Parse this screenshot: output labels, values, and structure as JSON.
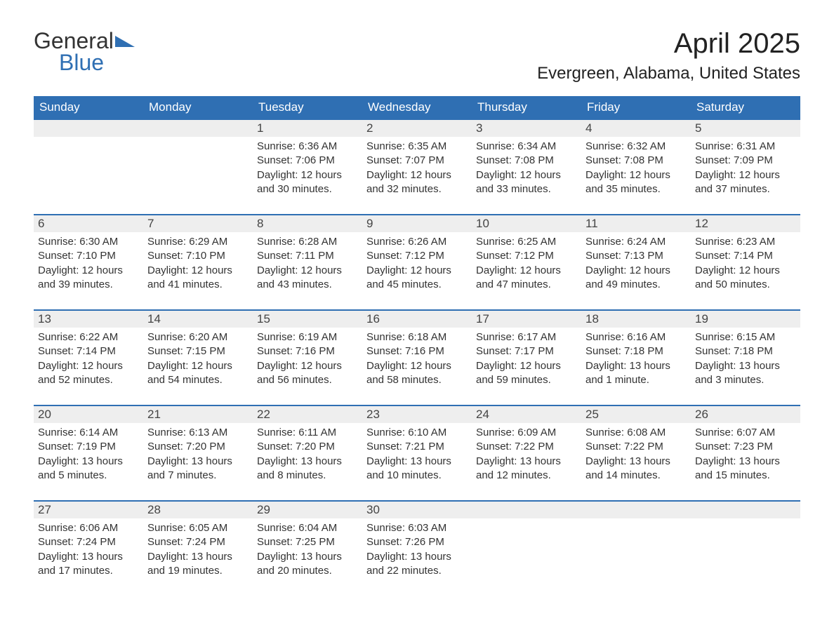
{
  "brand": {
    "general": "General",
    "blue": "Blue",
    "flag_color": "#2f6fb3"
  },
  "title": "April 2025",
  "location": "Evergreen, Alabama, United States",
  "colors": {
    "header_bg": "#2f6fb3",
    "header_text": "#ffffff",
    "daynum_bg": "#eeeeee",
    "body_text": "#333333",
    "row_border": "#2f6fb3",
    "page_bg": "#ffffff"
  },
  "fonts": {
    "title_size_pt": 30,
    "location_size_pt": 18,
    "header_size_pt": 13,
    "body_size_pt": 11
  },
  "weekdays": [
    "Sunday",
    "Monday",
    "Tuesday",
    "Wednesday",
    "Thursday",
    "Friday",
    "Saturday"
  ],
  "weeks": [
    [
      null,
      null,
      {
        "n": "1",
        "sr": "Sunrise: 6:36 AM",
        "ss": "Sunset: 7:06 PM",
        "dl": "Daylight: 12 hours and 30 minutes."
      },
      {
        "n": "2",
        "sr": "Sunrise: 6:35 AM",
        "ss": "Sunset: 7:07 PM",
        "dl": "Daylight: 12 hours and 32 minutes."
      },
      {
        "n": "3",
        "sr": "Sunrise: 6:34 AM",
        "ss": "Sunset: 7:08 PM",
        "dl": "Daylight: 12 hours and 33 minutes."
      },
      {
        "n": "4",
        "sr": "Sunrise: 6:32 AM",
        "ss": "Sunset: 7:08 PM",
        "dl": "Daylight: 12 hours and 35 minutes."
      },
      {
        "n": "5",
        "sr": "Sunrise: 6:31 AM",
        "ss": "Sunset: 7:09 PM",
        "dl": "Daylight: 12 hours and 37 minutes."
      }
    ],
    [
      {
        "n": "6",
        "sr": "Sunrise: 6:30 AM",
        "ss": "Sunset: 7:10 PM",
        "dl": "Daylight: 12 hours and 39 minutes."
      },
      {
        "n": "7",
        "sr": "Sunrise: 6:29 AM",
        "ss": "Sunset: 7:10 PM",
        "dl": "Daylight: 12 hours and 41 minutes."
      },
      {
        "n": "8",
        "sr": "Sunrise: 6:28 AM",
        "ss": "Sunset: 7:11 PM",
        "dl": "Daylight: 12 hours and 43 minutes."
      },
      {
        "n": "9",
        "sr": "Sunrise: 6:26 AM",
        "ss": "Sunset: 7:12 PM",
        "dl": "Daylight: 12 hours and 45 minutes."
      },
      {
        "n": "10",
        "sr": "Sunrise: 6:25 AM",
        "ss": "Sunset: 7:12 PM",
        "dl": "Daylight: 12 hours and 47 minutes."
      },
      {
        "n": "11",
        "sr": "Sunrise: 6:24 AM",
        "ss": "Sunset: 7:13 PM",
        "dl": "Daylight: 12 hours and 49 minutes."
      },
      {
        "n": "12",
        "sr": "Sunrise: 6:23 AM",
        "ss": "Sunset: 7:14 PM",
        "dl": "Daylight: 12 hours and 50 minutes."
      }
    ],
    [
      {
        "n": "13",
        "sr": "Sunrise: 6:22 AM",
        "ss": "Sunset: 7:14 PM",
        "dl": "Daylight: 12 hours and 52 minutes."
      },
      {
        "n": "14",
        "sr": "Sunrise: 6:20 AM",
        "ss": "Sunset: 7:15 PM",
        "dl": "Daylight: 12 hours and 54 minutes."
      },
      {
        "n": "15",
        "sr": "Sunrise: 6:19 AM",
        "ss": "Sunset: 7:16 PM",
        "dl": "Daylight: 12 hours and 56 minutes."
      },
      {
        "n": "16",
        "sr": "Sunrise: 6:18 AM",
        "ss": "Sunset: 7:16 PM",
        "dl": "Daylight: 12 hours and 58 minutes."
      },
      {
        "n": "17",
        "sr": "Sunrise: 6:17 AM",
        "ss": "Sunset: 7:17 PM",
        "dl": "Daylight: 12 hours and 59 minutes."
      },
      {
        "n": "18",
        "sr": "Sunrise: 6:16 AM",
        "ss": "Sunset: 7:18 PM",
        "dl": "Daylight: 13 hours and 1 minute."
      },
      {
        "n": "19",
        "sr": "Sunrise: 6:15 AM",
        "ss": "Sunset: 7:18 PM",
        "dl": "Daylight: 13 hours and 3 minutes."
      }
    ],
    [
      {
        "n": "20",
        "sr": "Sunrise: 6:14 AM",
        "ss": "Sunset: 7:19 PM",
        "dl": "Daylight: 13 hours and 5 minutes."
      },
      {
        "n": "21",
        "sr": "Sunrise: 6:13 AM",
        "ss": "Sunset: 7:20 PM",
        "dl": "Daylight: 13 hours and 7 minutes."
      },
      {
        "n": "22",
        "sr": "Sunrise: 6:11 AM",
        "ss": "Sunset: 7:20 PM",
        "dl": "Daylight: 13 hours and 8 minutes."
      },
      {
        "n": "23",
        "sr": "Sunrise: 6:10 AM",
        "ss": "Sunset: 7:21 PM",
        "dl": "Daylight: 13 hours and 10 minutes."
      },
      {
        "n": "24",
        "sr": "Sunrise: 6:09 AM",
        "ss": "Sunset: 7:22 PM",
        "dl": "Daylight: 13 hours and 12 minutes."
      },
      {
        "n": "25",
        "sr": "Sunrise: 6:08 AM",
        "ss": "Sunset: 7:22 PM",
        "dl": "Daylight: 13 hours and 14 minutes."
      },
      {
        "n": "26",
        "sr": "Sunrise: 6:07 AM",
        "ss": "Sunset: 7:23 PM",
        "dl": "Daylight: 13 hours and 15 minutes."
      }
    ],
    [
      {
        "n": "27",
        "sr": "Sunrise: 6:06 AM",
        "ss": "Sunset: 7:24 PM",
        "dl": "Daylight: 13 hours and 17 minutes."
      },
      {
        "n": "28",
        "sr": "Sunrise: 6:05 AM",
        "ss": "Sunset: 7:24 PM",
        "dl": "Daylight: 13 hours and 19 minutes."
      },
      {
        "n": "29",
        "sr": "Sunrise: 6:04 AM",
        "ss": "Sunset: 7:25 PM",
        "dl": "Daylight: 13 hours and 20 minutes."
      },
      {
        "n": "30",
        "sr": "Sunrise: 6:03 AM",
        "ss": "Sunset: 7:26 PM",
        "dl": "Daylight: 13 hours and 22 minutes."
      },
      null,
      null,
      null
    ]
  ]
}
